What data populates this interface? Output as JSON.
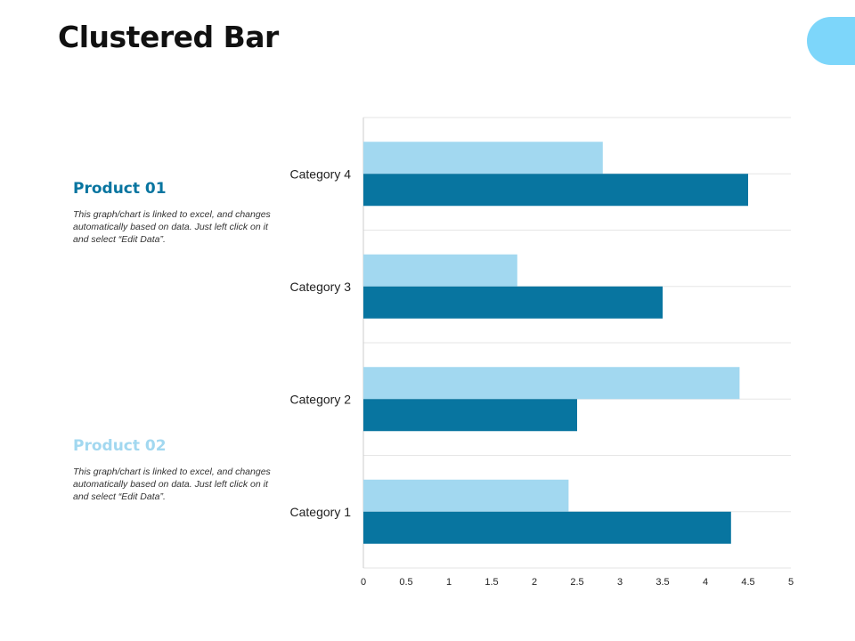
{
  "slide": {
    "title": "Clustered Bar"
  },
  "legend": [
    {
      "label": "Product 01",
      "description": "This graph/chart is linked to excel, and changes automatically based on data. Just left click on it and select “Edit Data”.",
      "color": "#0875a0"
    },
    {
      "label": "Product 02",
      "description": "This graph/chart is linked to excel, and changes automatically based on data. Just left click on it and select “Edit Data”.",
      "color": "#a2d8f0"
    }
  ],
  "colors": {
    "accent_tab": "#7dd6fa",
    "gridline": "#e6e6e6",
    "axis": "#cccccc"
  },
  "chart_data": {
    "type": "bar",
    "orientation": "horizontal",
    "categories": [
      "Category 1",
      "Category 2",
      "Category 3",
      "Category 4"
    ],
    "series": [
      {
        "name": "Product 01",
        "values": [
          4.3,
          2.5,
          3.5,
          4.5
        ],
        "color": "#0875a0"
      },
      {
        "name": "Product 02",
        "values": [
          2.4,
          4.4,
          1.8,
          2.8
        ],
        "color": "#a2d8f0"
      }
    ],
    "xlim": [
      0,
      5
    ],
    "xticks": [
      "0",
      "0.5",
      "1",
      "1.5",
      "2",
      "2.5",
      "3",
      "3.5",
      "4",
      "4.5",
      "5"
    ],
    "grid": "horizontal",
    "legend_position": "left"
  }
}
